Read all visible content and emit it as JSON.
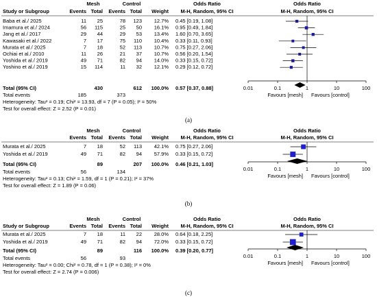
{
  "chart_data": [
    {
      "type": "forest",
      "panel_label": "(a)",
      "headers": {
        "study": "Study or Subgroup",
        "mesh": "Mesh",
        "control": "Control",
        "events": "Events",
        "total": "Total",
        "weight": "Weight",
        "or_table": "Odds Ratio",
        "method_table": "M-H, Random, 95% CI",
        "or_plot": "Odds Ratio",
        "method_plot": "M-H, Random, 95% CI"
      },
      "studies": [
        {
          "name": "Baba et al./ 2025",
          "mesh_events": 11,
          "mesh_total": 25,
          "control_events": 78,
          "control_total": 123,
          "weight": 12.7,
          "weight_label": "12.7%",
          "or": 0.45,
          "lower": 0.19,
          "upper": 1.08,
          "estimate_label": "0.45 [0.19, 1.08]"
        },
        {
          "name": "Imamura et al./ 2024",
          "mesh_events": 56,
          "mesh_total": 115,
          "control_events": 25,
          "control_total": 50,
          "weight": 16.1,
          "weight_label": "16.1%",
          "or": 0.95,
          "lower": 0.49,
          "upper": 1.84,
          "estimate_label": "0.95 [0.49, 1.84]"
        },
        {
          "name": "Jang et al./ 2017",
          "mesh_events": 29,
          "mesh_total": 44,
          "control_events": 29,
          "control_total": 53,
          "weight": 13.4,
          "weight_label": "13.4%",
          "or": 1.6,
          "lower": 0.7,
          "upper": 3.65,
          "estimate_label": "1.60 [0.70, 3.65]"
        },
        {
          "name": "Kawasaki et al./ 2022",
          "mesh_events": 7,
          "mesh_total": 17,
          "control_events": 75,
          "control_total": 110,
          "weight": 10.4,
          "weight_label": "10.4%",
          "or": 0.33,
          "lower": 0.11,
          "upper": 0.93,
          "estimate_label": "0.33 [0.11, 0.93]"
        },
        {
          "name": "Murata et al./ 2025",
          "mesh_events": 7,
          "mesh_total": 18,
          "control_events": 52,
          "control_total": 113,
          "weight": 10.7,
          "weight_label": "10.7%",
          "or": 0.75,
          "lower": 0.27,
          "upper": 2.06,
          "estimate_label": "0.75 [0.27, 2.06]"
        },
        {
          "name": "Ochiai et al./ 2010",
          "mesh_events": 11,
          "mesh_total": 26,
          "control_events": 21,
          "control_total": 37,
          "weight": 10.7,
          "weight_label": "10.7%",
          "or": 0.56,
          "lower": 0.2,
          "upper": 1.54,
          "estimate_label": "0.56 [0.20, 1.54]"
        },
        {
          "name": "Yoshida et al./ 2019",
          "mesh_events": 49,
          "mesh_total": 71,
          "control_events": 82,
          "control_total": 94,
          "weight": 14.0,
          "weight_label": "14.0%",
          "or": 0.33,
          "lower": 0.15,
          "upper": 0.72,
          "estimate_label": "0.33 [0.15, 0.72]"
        },
        {
          "name": "Yoshino et al./ 2019",
          "mesh_events": 15,
          "mesh_total": 114,
          "control_events": 11,
          "control_total": 32,
          "weight": 12.1,
          "weight_label": "12.1%",
          "or": 0.29,
          "lower": 0.12,
          "upper": 0.72,
          "estimate_label": "0.29 [0.12, 0.72]"
        }
      ],
      "total": {
        "name": "Total (95% CI)",
        "mesh_total": 430,
        "control_total": 612,
        "weight_label": "100.0%",
        "or": 0.57,
        "lower": 0.37,
        "upper": 0.88,
        "estimate_label": "0.57 [0.37, 0.88]"
      },
      "total_events": {
        "name": "Total events",
        "mesh": 185,
        "control": 373
      },
      "heterogeneity": "Heterogeneity: Tau² = 0.19; Chi² = 13.93, df = 7 (P = 0.05); I² = 50%",
      "overall_effect": "Test for overall effect: Z = 2.52 (P = 0.01)",
      "xlim": [
        0.01,
        100
      ],
      "xticks": [
        0.01,
        0.1,
        1,
        10,
        100
      ],
      "log_x": true,
      "favours_left": "Favours [mesh]",
      "favours_right": "Favours [control]",
      "color": "#1a1aa8"
    },
    {
      "type": "forest",
      "panel_label": "(b)",
      "headers": {
        "mesh": "Mesh",
        "control": "Control",
        "events": "Events",
        "total": "Total",
        "weight": "Weight",
        "or_table": "Odds Ratio",
        "method_table": "M-H, Random, 95% CI",
        "or_plot": "Odds Ratio",
        "method_plot": "M-H, Random, 95% CI"
      },
      "studies": [
        {
          "name": "Murata et al./ 2025",
          "mesh_events": 7,
          "mesh_total": 18,
          "control_events": 52,
          "control_total": 113,
          "weight": 42.1,
          "weight_label": "42.1%",
          "or": 0.75,
          "lower": 0.27,
          "upper": 2.06,
          "estimate_label": "0.75 [0.27, 2.06]"
        },
        {
          "name": "Yoshida et al./ 2019",
          "mesh_events": 49,
          "mesh_total": 71,
          "control_events": 82,
          "control_total": 94,
          "weight": 57.9,
          "weight_label": "57.9%",
          "or": 0.33,
          "lower": 0.15,
          "upper": 0.72,
          "estimate_label": "0.33 [0.15, 0.72]"
        }
      ],
      "total": {
        "name": "Total (95% CI)",
        "mesh_total": 89,
        "control_total": 207,
        "weight_label": "100.0%",
        "or": 0.46,
        "lower": 0.21,
        "upper": 1.03,
        "estimate_label": "0.46 [0.21, 1.03]"
      },
      "total_events": {
        "name": "Total events",
        "mesh": 56,
        "control": 134
      },
      "heterogeneity": "Heterogeneity: Tau² = 0.13; Chi² = 1.59, df = 1 (P = 0.21); I² = 37%",
      "overall_effect": "Test for overall effect: Z = 1.89 (P = 0.06)",
      "xlim": [
        0.01,
        100
      ],
      "xticks": [
        0.01,
        0.1,
        1,
        10,
        100
      ],
      "log_x": true,
      "favours_left": "Favours [mesh]",
      "favours_right": "Favours [control]",
      "color": "#1f1fd6"
    },
    {
      "type": "forest",
      "panel_label": "(c)",
      "headers": {
        "study": "Study or Subgroup",
        "mesh": "Mesh",
        "control": "Control",
        "events": "Events",
        "total": "Total",
        "weight": "Weight",
        "or_table": "Odds Ratio",
        "method_table": "M-H, Random, 95% CI",
        "or_plot": "Odds Ratio",
        "method_plot": "M-H, Random, 95% CI"
      },
      "studies": [
        {
          "name": "Murata et al./ 2025",
          "mesh_events": 7,
          "mesh_total": 18,
          "control_events": 11,
          "control_total": 22,
          "weight": 28.0,
          "weight_label": "28.0%",
          "or": 0.64,
          "lower": 0.18,
          "upper": 2.25,
          "estimate_label": "0.64 [0.18, 2.25]"
        },
        {
          "name": "Yoshida et al./ 2019",
          "mesh_events": 49,
          "mesh_total": 71,
          "control_events": 82,
          "control_total": 94,
          "weight": 72.0,
          "weight_label": "72.0%",
          "or": 0.33,
          "lower": 0.15,
          "upper": 0.72,
          "estimate_label": "0.33 [0.15, 0.72]"
        }
      ],
      "total": {
        "name": "Total (95% CI)",
        "mesh_total": 89,
        "control_total": 116,
        "weight_label": "100.0%",
        "or": 0.39,
        "lower": 0.2,
        "upper": 0.77,
        "estimate_label": "0.39 [0.20, 0.77]"
      },
      "total_events": {
        "name": "Total events",
        "mesh": 56,
        "control": 93
      },
      "heterogeneity": "Heterogeneity: Tau² = 0.00; Chi² = 0.78, df = 1 (P = 0.38); I² = 0%",
      "overall_effect": "Test for overall effect: Z = 2.74 (P = 0.006)",
      "xlim": [
        0.01,
        100
      ],
      "xticks": [
        0.01,
        0.1,
        1,
        10,
        100
      ],
      "log_x": true,
      "favours_left": "Favours [mesh]",
      "favours_right": "Favours [control]",
      "color": "#1f1fd6"
    }
  ]
}
